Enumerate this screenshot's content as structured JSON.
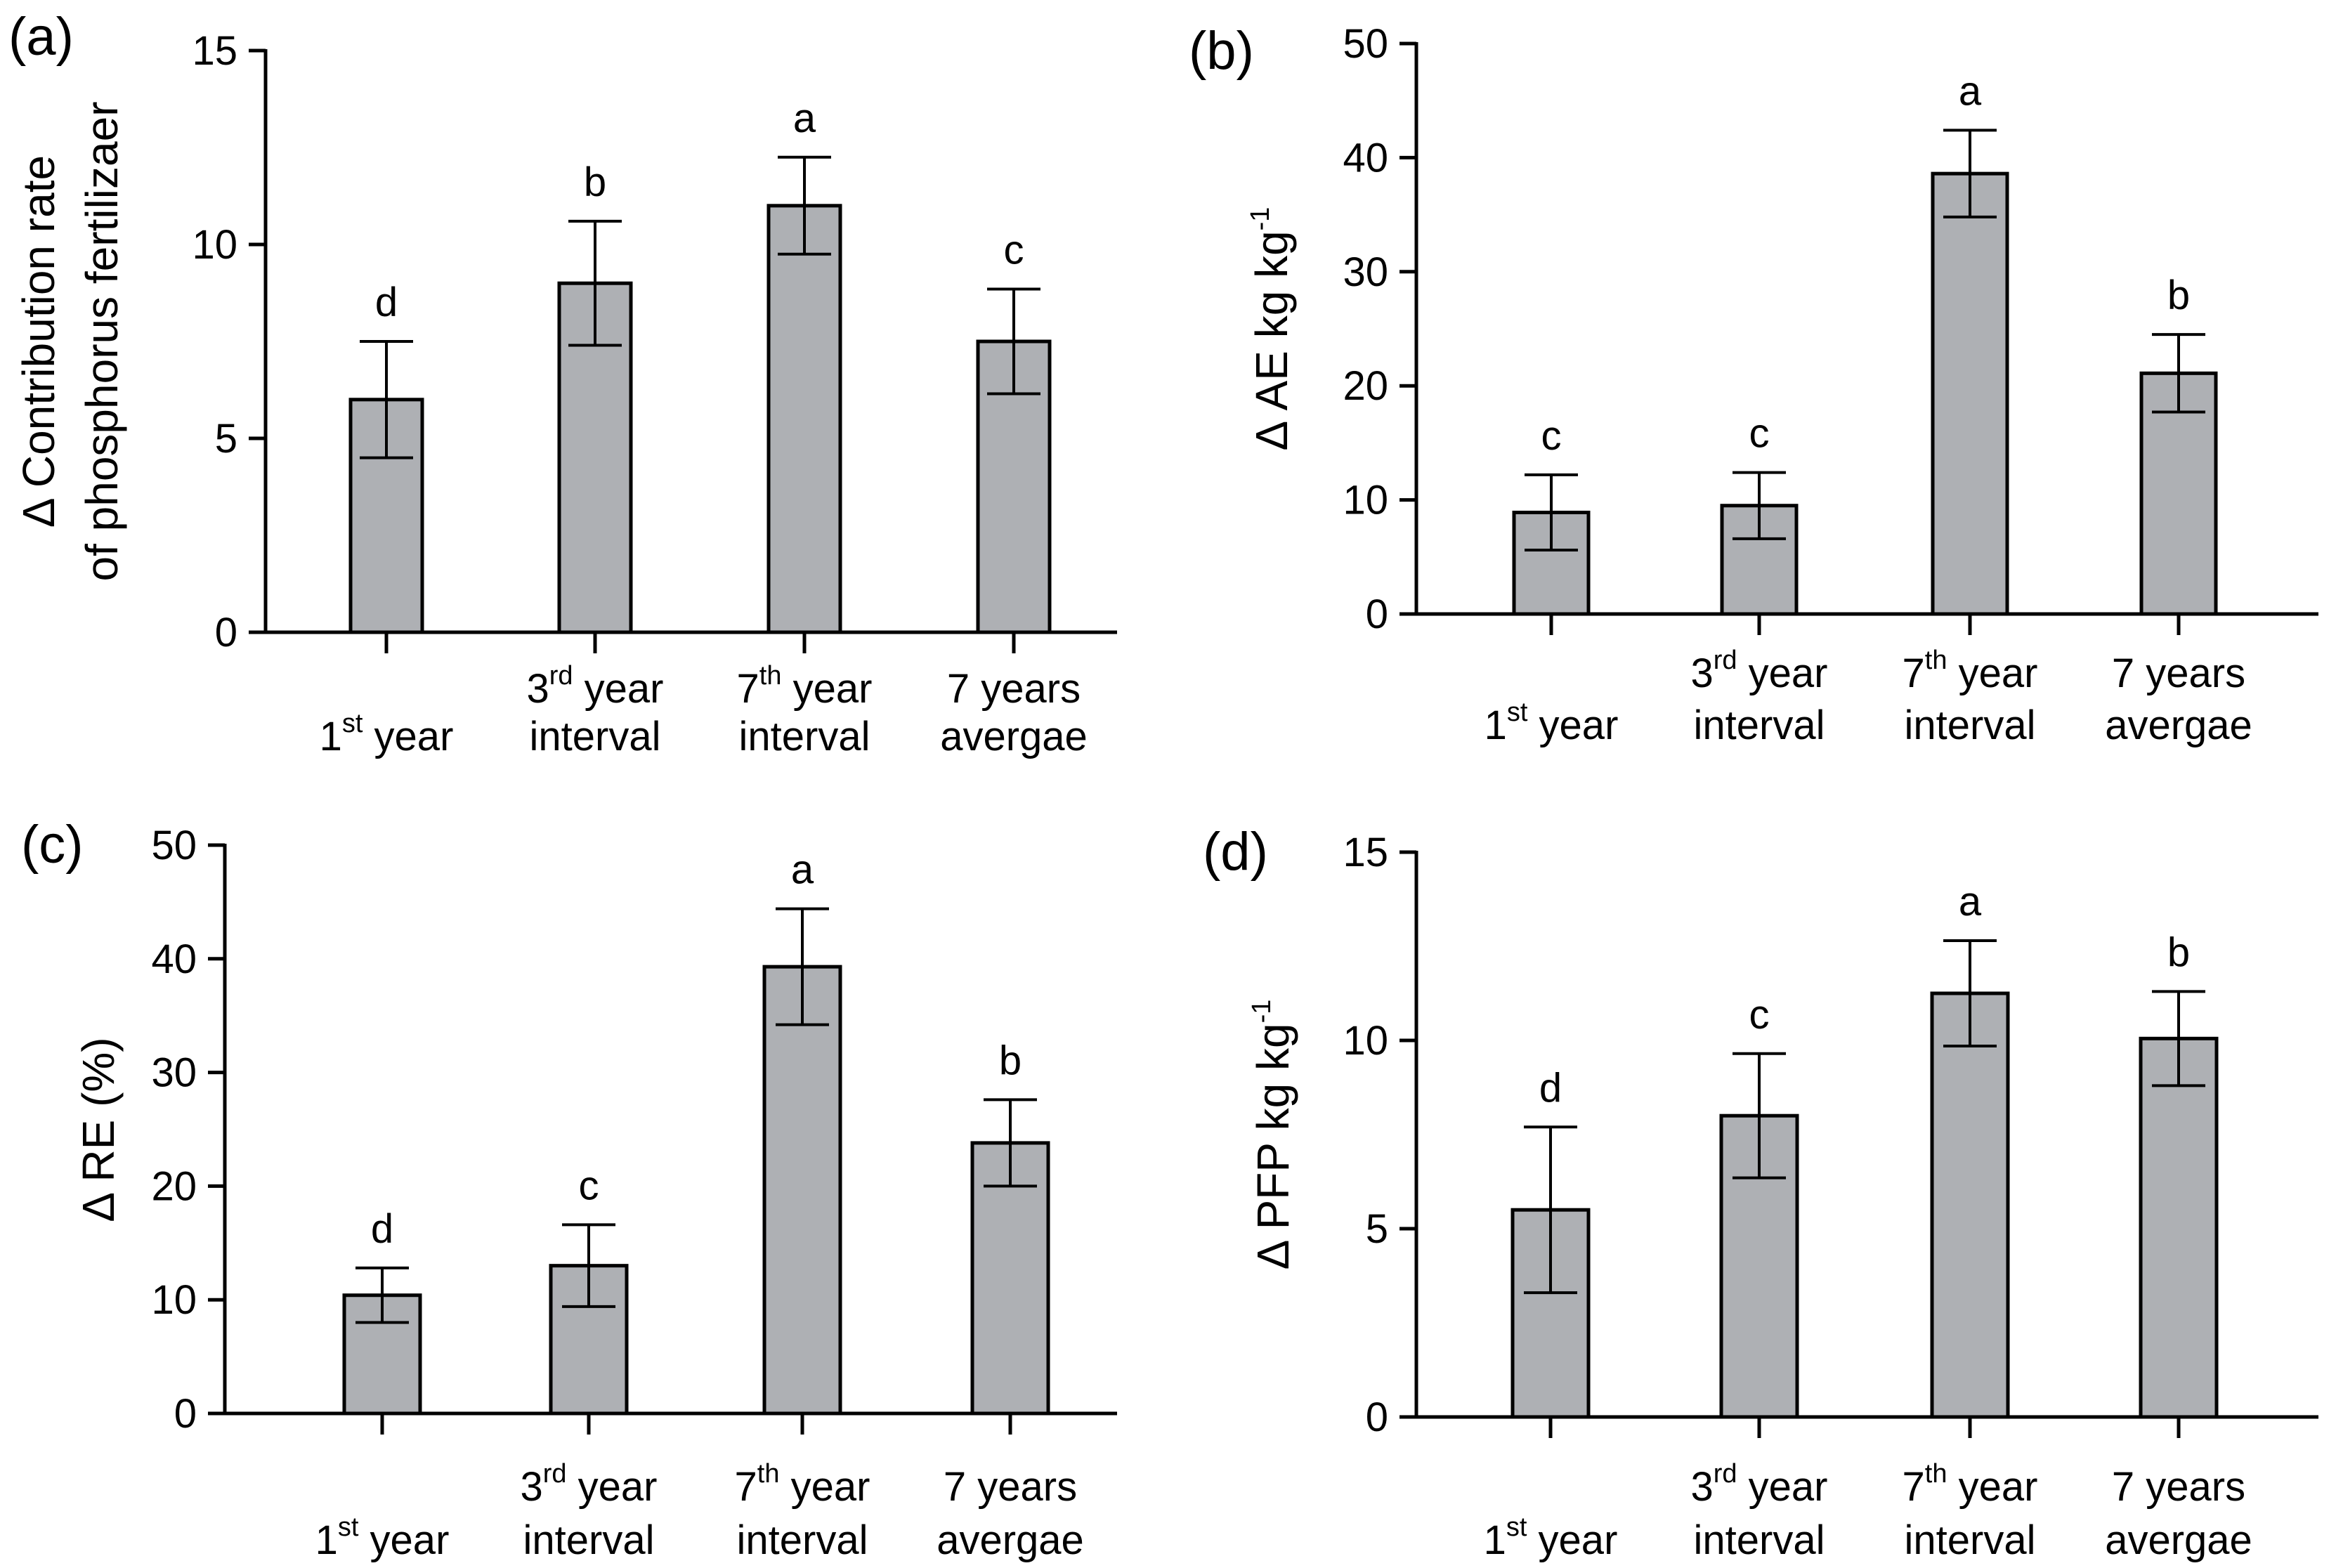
{
  "figure": {
    "bar_color": "#aeb0b4",
    "categories": [
      {
        "lines": [
          [
            {
              "t": "1",
              "s": ""
            },
            {
              "t": "st",
              "s": "sup"
            },
            {
              "t": " year",
              "s": ""
            }
          ]
        ]
      },
      {
        "lines": [
          [
            {
              "t": "3",
              "s": ""
            },
            {
              "t": "rd",
              "s": "sup"
            },
            {
              "t": " year",
              "s": ""
            }
          ],
          [
            {
              "t": "interval",
              "s": ""
            }
          ]
        ]
      },
      {
        "lines": [
          [
            {
              "t": "7",
              "s": ""
            },
            {
              "t": "th",
              "s": "sup"
            },
            {
              "t": " year",
              "s": ""
            }
          ],
          [
            {
              "t": "interval",
              "s": ""
            }
          ]
        ]
      },
      {
        "lines": [
          [
            {
              "t": "7 years",
              "s": ""
            }
          ],
          [
            {
              "t": "avergae",
              "s": ""
            }
          ]
        ]
      }
    ]
  },
  "chart_data": [
    {
      "type": "bar",
      "panel": "(a)",
      "categories": [
        "1st year",
        "3rd year interval",
        "7th year interval",
        "7 years avergae"
      ],
      "values": [
        6.0,
        9.0,
        11.0,
        7.5
      ],
      "error": [
        1.5,
        1.6,
        1.25,
        1.35
      ],
      "letters": [
        "d",
        "b",
        "a",
        "c"
      ],
      "ylim": [
        0,
        15
      ],
      "yticks": [
        0,
        5,
        10,
        15
      ],
      "ylabel_lines": [
        [
          {
            "t": "Δ Contribution rate",
            "s": ""
          }
        ],
        [
          {
            "t": "of phosphorus fertilizaer",
            "s": ""
          }
        ]
      ]
    },
    {
      "type": "bar",
      "panel": "(b)",
      "categories": [
        "1st year",
        "3rd year interval",
        "7th year interval",
        "7 years avergae"
      ],
      "values": [
        8.9,
        9.5,
        38.6,
        21.1
      ],
      "error": [
        3.3,
        2.9,
        3.8,
        3.4
      ],
      "letters": [
        "c",
        "c",
        "a",
        "b"
      ],
      "ylim": [
        0,
        50
      ],
      "yticks": [
        0,
        10,
        20,
        30,
        40,
        50
      ],
      "ylabel_lines": [
        [
          {
            "t": "Δ AE kg kg",
            "s": ""
          },
          {
            "t": "-1",
            "s": "sup"
          }
        ]
      ]
    },
    {
      "type": "bar",
      "panel": "(c)",
      "categories": [
        "1st year",
        "3rd year interval",
        "7th year interval",
        "7 years avergae"
      ],
      "values": [
        10.4,
        13.0,
        39.3,
        23.8
      ],
      "error": [
        2.4,
        3.6,
        5.1,
        3.8
      ],
      "letters": [
        "d",
        "c",
        "a",
        "b"
      ],
      "ylim": [
        0,
        50
      ],
      "yticks": [
        0,
        10,
        20,
        30,
        40,
        50
      ],
      "ylabel_lines": [
        [
          {
            "t": "Δ  RE (%)",
            "s": ""
          }
        ]
      ]
    },
    {
      "type": "bar",
      "panel": "(d)",
      "categories": [
        "1st year",
        "3rd year interval",
        "7th year interval",
        "7 years avergae"
      ],
      "values": [
        5.5,
        8.0,
        11.25,
        10.05
      ],
      "error": [
        2.2,
        1.65,
        1.4,
        1.25
      ],
      "letters": [
        "d",
        "c",
        "a",
        "b"
      ],
      "ylim": [
        0,
        15
      ],
      "yticks": [
        0,
        5,
        10,
        15
      ],
      "ylabel_lines": [
        [
          {
            "t": "Δ PFP kg kg",
            "s": ""
          },
          {
            "t": "-1",
            "s": "sup"
          }
        ]
      ]
    }
  ]
}
